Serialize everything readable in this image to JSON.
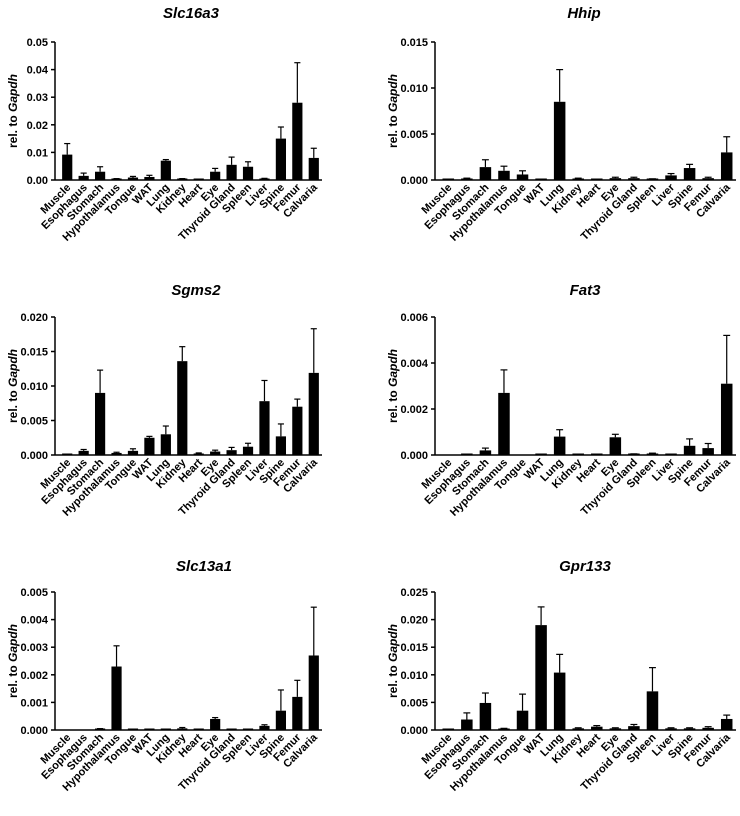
{
  "figure": {
    "y_label_prefix": "rel. to ",
    "y_label_gene": "Gapdh"
  },
  "chart_data": [
    {
      "type": "bar",
      "title": "Slc16a3",
      "ylabel": "rel. to Gapdh",
      "categories": [
        "Muscle",
        "Esophagus",
        "Stomach",
        "Hypothalamus",
        "Tongue",
        "WAT",
        "Lung",
        "Kidney",
        "Heart",
        "Eye",
        "Thyroid Gland",
        "Spleen",
        "Liver",
        "Spine",
        "Femur",
        "Calvaria"
      ],
      "values": [
        0.0092,
        0.0015,
        0.003,
        0.0003,
        0.0009,
        0.0011,
        0.007,
        0.0003,
        0.0002,
        0.003,
        0.0055,
        0.0048,
        0.0004,
        0.015,
        0.028,
        0.008
      ],
      "errors": [
        0.004,
        0.001,
        0.0018,
        0.0002,
        0.0004,
        0.0006,
        0.0004,
        0.0002,
        0.0001,
        0.0012,
        0.0028,
        0.0018,
        0.0002,
        0.0042,
        0.0145,
        0.0035
      ],
      "yticks": [
        "0.00",
        "0.01",
        "0.02",
        "0.03",
        "0.04",
        "0.05"
      ],
      "ylim": [
        0,
        0.05
      ],
      "grid": false
    },
    {
      "type": "bar",
      "title": "Hhip",
      "ylabel": "rel. to Gapdh",
      "categories": [
        "Muscle",
        "Esophagus",
        "Stomach",
        "Hypothalamus",
        "Tongue",
        "WAT",
        "Lung",
        "Kidney",
        "Heart",
        "Eye",
        "Thyroid Gland",
        "Spleen",
        "Liver",
        "Spine",
        "Femur",
        "Calvaria"
      ],
      "values": [
        3e-05,
        0.0001,
        0.0014,
        0.001,
        0.0006,
        5e-05,
        0.0085,
        0.0001,
        4e-05,
        0.0002,
        0.0002,
        8e-05,
        0.0005,
        0.0013,
        0.0002,
        0.003
      ],
      "errors": [
        2e-05,
        0.0001,
        0.0008,
        0.0005,
        0.0004,
        3e-05,
        0.0035,
        0.0001,
        2e-05,
        0.0001,
        0.0001,
        5e-05,
        0.0002,
        0.0004,
        0.0001,
        0.0017
      ],
      "yticks": [
        "0.000",
        "0.005",
        "0.010",
        "0.015"
      ],
      "ylim": [
        0,
        0.015
      ],
      "grid": false
    },
    {
      "type": "bar",
      "title": "Sgms2",
      "ylabel": "rel. to Gapdh",
      "categories": [
        "Muscle",
        "Esophagus",
        "Stomach",
        "Hypothalamus",
        "Tongue",
        "WAT",
        "Lung",
        "Kidney",
        "Heart",
        "Eye",
        "Thyroid Gland",
        "Spleen",
        "Liver",
        "Spine",
        "Femur",
        "Calvaria"
      ],
      "values": [
        5e-05,
        0.0006,
        0.009,
        0.0003,
        0.0006,
        0.0025,
        0.003,
        0.0136,
        0.0002,
        0.0005,
        0.0007,
        0.0012,
        0.0078,
        0.0027,
        0.007,
        0.0119
      ],
      "errors": [
        3e-05,
        0.0002,
        0.0033,
        0.0001,
        0.0003,
        0.0002,
        0.0012,
        0.0021,
        0.0001,
        0.0002,
        0.0004,
        0.0005,
        0.003,
        0.0018,
        0.0011,
        0.0064
      ],
      "yticks": [
        "0.000",
        "0.005",
        "0.010",
        "0.015",
        "0.020"
      ],
      "ylim": [
        0,
        0.02
      ],
      "grid": false
    },
    {
      "type": "bar",
      "title": "Fat3",
      "ylabel": "rel. to Gapdh",
      "categories": [
        "Muscle",
        "Esophagus",
        "Stomach",
        "Hypothalamus",
        "Tongue",
        "WAT",
        "Lung",
        "Kidney",
        "Heart",
        "Eye",
        "Thyroid Gland",
        "Spleen",
        "Liver",
        "Spine",
        "Femur",
        "Calvaria"
      ],
      "values": [
        0.0,
        1e-05,
        0.0002,
        0.0027,
        0.0,
        1e-05,
        0.0008,
        1e-05,
        1e-05,
        0.00077,
        3e-05,
        5e-05,
        1e-05,
        0.0004,
        0.0003,
        0.0031
      ],
      "errors": [
        0.0,
        1e-05,
        0.0001,
        0.001,
        0.0,
        1e-05,
        0.0003,
        1e-05,
        1e-05,
        0.00013,
        2e-05,
        3e-05,
        1e-05,
        0.0003,
        0.0002,
        0.0021
      ],
      "yticks": [
        "0.000",
        "0.002",
        "0.004",
        "0.006"
      ],
      "ylim": [
        0,
        0.006
      ],
      "grid": false
    },
    {
      "type": "bar",
      "title": "Slc13a1",
      "ylabel": "rel. to Gapdh",
      "categories": [
        "Muscle",
        "Esophagus",
        "Stomach",
        "Hypothalamus",
        "Tongue",
        "WAT",
        "Lung",
        "Kidney",
        "Heart",
        "Eye",
        "Thyroid Gland",
        "Spleen",
        "Liver",
        "Spine",
        "Femur",
        "Calvaria"
      ],
      "values": [
        0.0,
        0.0,
        3e-05,
        0.0023,
        1e-05,
        1e-05,
        2e-05,
        6e-05,
        1e-05,
        0.0004,
        2e-05,
        1e-05,
        0.00015,
        0.0007,
        0.0012,
        0.0027
      ],
      "errors": [
        0.0,
        0.0,
        2e-05,
        0.00075,
        1e-05,
        1e-05,
        1e-05,
        3e-05,
        1e-05,
        5e-05,
        1e-05,
        1e-05,
        4e-05,
        0.00075,
        0.0006,
        0.00175
      ],
      "yticks": [
        "0.000",
        "0.001",
        "0.002",
        "0.003",
        "0.004",
        "0.005"
      ],
      "ylim": [
        0,
        0.005
      ],
      "grid": false
    },
    {
      "type": "bar",
      "title": "Gpr133",
      "ylabel": "rel. to Gapdh",
      "categories": [
        "Muscle",
        "Esophagus",
        "Stomach",
        "Hypothalamus",
        "Tongue",
        "WAT",
        "Lung",
        "Kidney",
        "Heart",
        "Eye",
        "Thyroid Gland",
        "Spleen",
        "Liver",
        "Spine",
        "Femur",
        "Calvaria"
      ],
      "values": [
        5e-05,
        0.0019,
        0.0049,
        0.0002,
        0.0035,
        0.019,
        0.0104,
        0.0003,
        0.0006,
        0.0003,
        0.0007,
        0.007,
        0.0003,
        0.0003,
        0.0004,
        0.002
      ],
      "errors": [
        3e-05,
        0.0012,
        0.0018,
        0.0001,
        0.003,
        0.0033,
        0.0033,
        0.0001,
        0.0002,
        0.0001,
        0.0003,
        0.0043,
        0.0001,
        0.0001,
        0.0002,
        0.0007
      ],
      "yticks": [
        "0.000",
        "0.005",
        "0.010",
        "0.015",
        "0.020",
        "0.025"
      ],
      "ylim": [
        0,
        0.025
      ],
      "grid": false
    }
  ]
}
